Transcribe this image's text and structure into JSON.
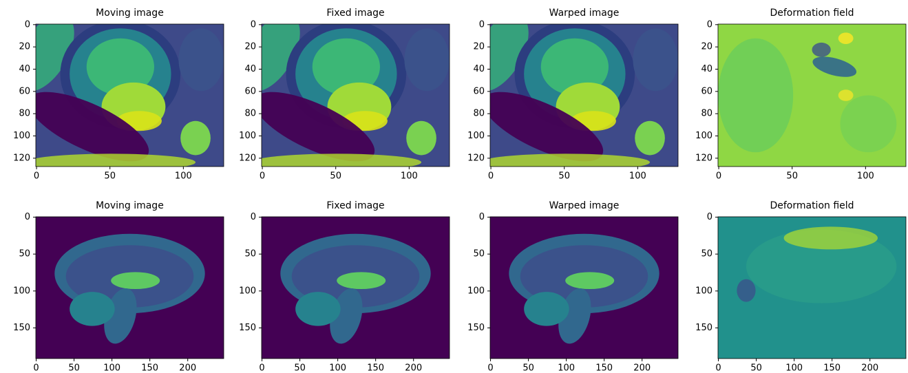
{
  "chart_data": [
    {
      "type": "image",
      "title": "Moving image",
      "xlim": [
        -0.5,
        127.5
      ],
      "ylim": [
        127.5,
        -0.5
      ],
      "xticks": [
        0,
        50,
        100
      ],
      "yticks": [
        0,
        20,
        40,
        60,
        80,
        100,
        120
      ]
    },
    {
      "type": "image",
      "title": "Fixed  image",
      "xlim": [
        -0.5,
        127.5
      ],
      "ylim": [
        127.5,
        -0.5
      ],
      "xticks": [
        0,
        50,
        100
      ],
      "yticks": [
        0,
        20,
        40,
        60,
        80,
        100,
        120
      ]
    },
    {
      "type": "image",
      "title": "Warped  image",
      "xlim": [
        -0.5,
        127.5
      ],
      "ylim": [
        127.5,
        -0.5
      ],
      "xticks": [
        0,
        50,
        100
      ],
      "yticks": [
        0,
        20,
        40,
        60,
        80,
        100,
        120
      ]
    },
    {
      "type": "image",
      "title": "Deformation field",
      "xlim": [
        -0.5,
        127.5
      ],
      "ylim": [
        127.5,
        -0.5
      ],
      "xticks": [
        0,
        50,
        100
      ],
      "yticks": [
        0,
        20,
        40,
        60,
        80,
        100,
        120
      ]
    },
    {
      "type": "image",
      "title": "Moving  image",
      "xlim": [
        -0.5,
        247.5
      ],
      "ylim": [
        191.5,
        -0.5
      ],
      "xticks": [
        0,
        50,
        100,
        150,
        200
      ],
      "yticks": [
        0,
        50,
        100,
        150
      ]
    },
    {
      "type": "image",
      "title": "Fixed  image",
      "xlim": [
        -0.5,
        247.5
      ],
      "ylim": [
        191.5,
        -0.5
      ],
      "xticks": [
        0,
        50,
        100,
        150,
        200
      ],
      "yticks": [
        0,
        50,
        100,
        150
      ]
    },
    {
      "type": "image",
      "title": "Warped  image",
      "xlim": [
        -0.5,
        247.5
      ],
      "ylim": [
        191.5,
        -0.5
      ],
      "xticks": [
        0,
        50,
        100,
        150,
        200
      ],
      "yticks": [
        0,
        50,
        100,
        150
      ]
    },
    {
      "type": "image",
      "title": "Deformation field",
      "xlim": [
        -0.5,
        247.5
      ],
      "ylim": [
        191.5,
        -0.5
      ],
      "xticks": [
        0,
        50,
        100,
        150,
        200
      ],
      "yticks": [
        0,
        50,
        100,
        150
      ]
    }
  ]
}
